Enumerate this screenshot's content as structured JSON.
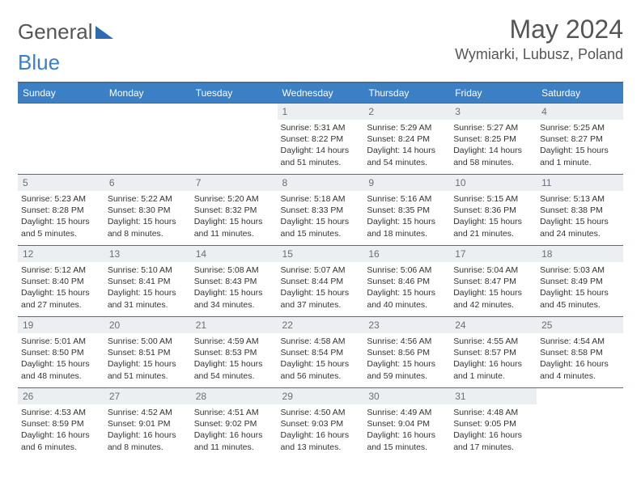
{
  "brand": {
    "word1": "General",
    "word2": "Blue",
    "word2_color": "#3b7fc4"
  },
  "title": "May 2024",
  "location": "Wymiarki, Lubusz, Poland",
  "colors": {
    "header_bg": "#3b7fc4",
    "rule": "#3b6fa0",
    "daybar_bg": "#eceff1"
  },
  "day_headers": [
    "Sunday",
    "Monday",
    "Tuesday",
    "Wednesday",
    "Thursday",
    "Friday",
    "Saturday"
  ],
  "weeks": [
    [
      null,
      null,
      null,
      {
        "n": "1",
        "sr": "Sunrise: 5:31 AM",
        "ss": "Sunset: 8:22 PM",
        "dl": "Daylight: 14 hours and 51 minutes."
      },
      {
        "n": "2",
        "sr": "Sunrise: 5:29 AM",
        "ss": "Sunset: 8:24 PM",
        "dl": "Daylight: 14 hours and 54 minutes."
      },
      {
        "n": "3",
        "sr": "Sunrise: 5:27 AM",
        "ss": "Sunset: 8:25 PM",
        "dl": "Daylight: 14 hours and 58 minutes."
      },
      {
        "n": "4",
        "sr": "Sunrise: 5:25 AM",
        "ss": "Sunset: 8:27 PM",
        "dl": "Daylight: 15 hours and 1 minute."
      }
    ],
    [
      {
        "n": "5",
        "sr": "Sunrise: 5:23 AM",
        "ss": "Sunset: 8:28 PM",
        "dl": "Daylight: 15 hours and 5 minutes."
      },
      {
        "n": "6",
        "sr": "Sunrise: 5:22 AM",
        "ss": "Sunset: 8:30 PM",
        "dl": "Daylight: 15 hours and 8 minutes."
      },
      {
        "n": "7",
        "sr": "Sunrise: 5:20 AM",
        "ss": "Sunset: 8:32 PM",
        "dl": "Daylight: 15 hours and 11 minutes."
      },
      {
        "n": "8",
        "sr": "Sunrise: 5:18 AM",
        "ss": "Sunset: 8:33 PM",
        "dl": "Daylight: 15 hours and 15 minutes."
      },
      {
        "n": "9",
        "sr": "Sunrise: 5:16 AM",
        "ss": "Sunset: 8:35 PM",
        "dl": "Daylight: 15 hours and 18 minutes."
      },
      {
        "n": "10",
        "sr": "Sunrise: 5:15 AM",
        "ss": "Sunset: 8:36 PM",
        "dl": "Daylight: 15 hours and 21 minutes."
      },
      {
        "n": "11",
        "sr": "Sunrise: 5:13 AM",
        "ss": "Sunset: 8:38 PM",
        "dl": "Daylight: 15 hours and 24 minutes."
      }
    ],
    [
      {
        "n": "12",
        "sr": "Sunrise: 5:12 AM",
        "ss": "Sunset: 8:40 PM",
        "dl": "Daylight: 15 hours and 27 minutes."
      },
      {
        "n": "13",
        "sr": "Sunrise: 5:10 AM",
        "ss": "Sunset: 8:41 PM",
        "dl": "Daylight: 15 hours and 31 minutes."
      },
      {
        "n": "14",
        "sr": "Sunrise: 5:08 AM",
        "ss": "Sunset: 8:43 PM",
        "dl": "Daylight: 15 hours and 34 minutes."
      },
      {
        "n": "15",
        "sr": "Sunrise: 5:07 AM",
        "ss": "Sunset: 8:44 PM",
        "dl": "Daylight: 15 hours and 37 minutes."
      },
      {
        "n": "16",
        "sr": "Sunrise: 5:06 AM",
        "ss": "Sunset: 8:46 PM",
        "dl": "Daylight: 15 hours and 40 minutes."
      },
      {
        "n": "17",
        "sr": "Sunrise: 5:04 AM",
        "ss": "Sunset: 8:47 PM",
        "dl": "Daylight: 15 hours and 42 minutes."
      },
      {
        "n": "18",
        "sr": "Sunrise: 5:03 AM",
        "ss": "Sunset: 8:49 PM",
        "dl": "Daylight: 15 hours and 45 minutes."
      }
    ],
    [
      {
        "n": "19",
        "sr": "Sunrise: 5:01 AM",
        "ss": "Sunset: 8:50 PM",
        "dl": "Daylight: 15 hours and 48 minutes."
      },
      {
        "n": "20",
        "sr": "Sunrise: 5:00 AM",
        "ss": "Sunset: 8:51 PM",
        "dl": "Daylight: 15 hours and 51 minutes."
      },
      {
        "n": "21",
        "sr": "Sunrise: 4:59 AM",
        "ss": "Sunset: 8:53 PM",
        "dl": "Daylight: 15 hours and 54 minutes."
      },
      {
        "n": "22",
        "sr": "Sunrise: 4:58 AM",
        "ss": "Sunset: 8:54 PM",
        "dl": "Daylight: 15 hours and 56 minutes."
      },
      {
        "n": "23",
        "sr": "Sunrise: 4:56 AM",
        "ss": "Sunset: 8:56 PM",
        "dl": "Daylight: 15 hours and 59 minutes."
      },
      {
        "n": "24",
        "sr": "Sunrise: 4:55 AM",
        "ss": "Sunset: 8:57 PM",
        "dl": "Daylight: 16 hours and 1 minute."
      },
      {
        "n": "25",
        "sr": "Sunrise: 4:54 AM",
        "ss": "Sunset: 8:58 PM",
        "dl": "Daylight: 16 hours and 4 minutes."
      }
    ],
    [
      {
        "n": "26",
        "sr": "Sunrise: 4:53 AM",
        "ss": "Sunset: 8:59 PM",
        "dl": "Daylight: 16 hours and 6 minutes."
      },
      {
        "n": "27",
        "sr": "Sunrise: 4:52 AM",
        "ss": "Sunset: 9:01 PM",
        "dl": "Daylight: 16 hours and 8 minutes."
      },
      {
        "n": "28",
        "sr": "Sunrise: 4:51 AM",
        "ss": "Sunset: 9:02 PM",
        "dl": "Daylight: 16 hours and 11 minutes."
      },
      {
        "n": "29",
        "sr": "Sunrise: 4:50 AM",
        "ss": "Sunset: 9:03 PM",
        "dl": "Daylight: 16 hours and 13 minutes."
      },
      {
        "n": "30",
        "sr": "Sunrise: 4:49 AM",
        "ss": "Sunset: 9:04 PM",
        "dl": "Daylight: 16 hours and 15 minutes."
      },
      {
        "n": "31",
        "sr": "Sunrise: 4:48 AM",
        "ss": "Sunset: 9:05 PM",
        "dl": "Daylight: 16 hours and 17 minutes."
      },
      null
    ]
  ]
}
